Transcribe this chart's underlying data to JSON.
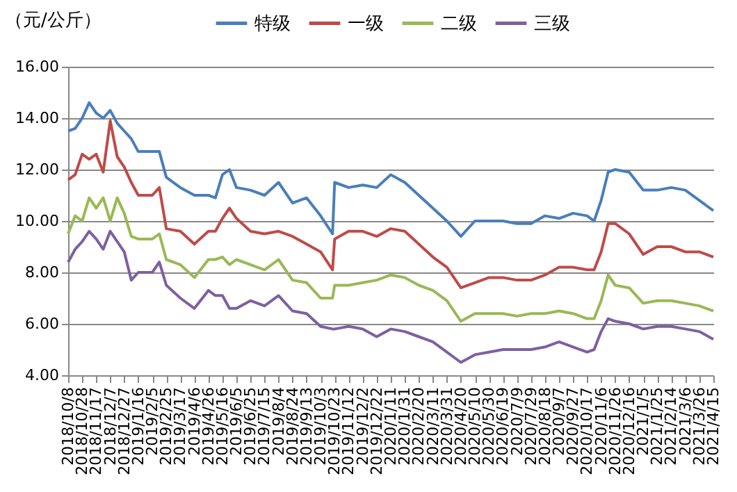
{
  "chart_data": {
    "type": "line",
    "ylabel": "（元/公斤）",
    "x": [
      "2018-10-08",
      "2018-10-18",
      "2018-10-28",
      "2018-11-07",
      "2018-11-17",
      "2018-11-27",
      "2018-12-07",
      "2018-12-17",
      "2018-12-27",
      "2019-01-06",
      "2019-01-16",
      "2019-02-05",
      "2019-02-15",
      "2019-02-25",
      "2019-03-17",
      "2019-04-06",
      "2019-04-26",
      "2019-05-06",
      "2019-05-16",
      "2019-05-26",
      "2019-06-05",
      "2019-06-25",
      "2019-07-15",
      "2019-08-04",
      "2019-08-24",
      "2019-09-13",
      "2019-10-03",
      "2019-10-20",
      "2019-10-23",
      "2019-11-12",
      "2019-12-02",
      "2019-12-22",
      "2020-01-11",
      "2020-01-31",
      "2020-02-20",
      "2020-03-11",
      "2020-03-31",
      "2020-04-20",
      "2020-05-10",
      "2020-05-30",
      "2020-06-19",
      "2020-07-09",
      "2020-07-29",
      "2020-08-18",
      "2020-09-07",
      "2020-09-27",
      "2020-10-17",
      "2020-10-27",
      "2020-11-06",
      "2020-11-16",
      "2020-11-26",
      "2020-12-16",
      "2021-01-05",
      "2021-01-25",
      "2021-02-14",
      "2021-03-06",
      "2021-03-26",
      "2021-04-15"
    ],
    "series": [
      {
        "name": "特级",
        "color": "#4a7ebb",
        "values": [
          13.5,
          13.6,
          14.0,
          14.6,
          14.2,
          14.0,
          14.3,
          13.8,
          13.5,
          13.2,
          12.7,
          12.7,
          12.7,
          11.7,
          11.3,
          11.0,
          11.0,
          10.9,
          11.8,
          12.0,
          11.3,
          11.2,
          11.0,
          11.5,
          10.7,
          10.9,
          10.2,
          9.5,
          11.5,
          11.3,
          11.4,
          11.3,
          11.8,
          11.5,
          11.0,
          10.5,
          10.0,
          9.4,
          10.0,
          10.0,
          10.0,
          9.9,
          9.9,
          10.2,
          10.1,
          10.3,
          10.2,
          10.0,
          10.8,
          11.9,
          12.0,
          11.9,
          11.2,
          11.2,
          11.3,
          11.2,
          10.8,
          10.4
        ]
      },
      {
        "name": "一级",
        "color": "#be4b48",
        "values": [
          11.6,
          11.8,
          12.6,
          12.4,
          12.6,
          11.9,
          13.9,
          12.5,
          12.1,
          11.5,
          11.0,
          11.0,
          11.3,
          9.7,
          9.6,
          9.1,
          9.6,
          9.6,
          10.1,
          10.5,
          10.1,
          9.6,
          9.5,
          9.6,
          9.4,
          9.1,
          8.8,
          8.1,
          9.3,
          9.6,
          9.6,
          9.4,
          9.7,
          9.6,
          9.1,
          8.6,
          8.2,
          7.4,
          7.6,
          7.8,
          7.8,
          7.7,
          7.7,
          7.9,
          8.2,
          8.2,
          8.1,
          8.1,
          8.8,
          9.9,
          9.9,
          9.5,
          8.7,
          9.0,
          9.0,
          8.8,
          8.8,
          8.6
        ]
      },
      {
        "name": "二级",
        "color": "#98b954",
        "values": [
          9.5,
          10.2,
          10.0,
          10.9,
          10.5,
          10.9,
          10.0,
          10.9,
          10.3,
          9.4,
          9.3,
          9.3,
          9.5,
          8.5,
          8.3,
          7.8,
          8.5,
          8.5,
          8.6,
          8.3,
          8.5,
          8.3,
          8.1,
          8.5,
          7.7,
          7.6,
          7.0,
          7.0,
          7.5,
          7.5,
          7.6,
          7.7,
          7.9,
          7.8,
          7.5,
          7.3,
          6.9,
          6.1,
          6.4,
          6.4,
          6.4,
          6.3,
          6.4,
          6.4,
          6.5,
          6.4,
          6.2,
          6.2,
          6.9,
          7.9,
          7.5,
          7.4,
          6.8,
          6.9,
          6.9,
          6.8,
          6.7,
          6.5
        ]
      },
      {
        "name": "三级",
        "color": "#7d60a0",
        "values": [
          8.4,
          8.9,
          9.2,
          9.6,
          9.3,
          8.9,
          9.6,
          9.2,
          8.8,
          7.7,
          8.0,
          8.0,
          8.4,
          7.5,
          7.0,
          6.6,
          7.3,
          7.1,
          7.1,
          6.6,
          6.6,
          6.9,
          6.7,
          7.1,
          6.5,
          6.4,
          5.9,
          5.8,
          5.8,
          5.9,
          5.8,
          5.5,
          5.8,
          5.7,
          5.5,
          5.3,
          4.9,
          4.5,
          4.8,
          4.9,
          5.0,
          5.0,
          5.0,
          5.1,
          5.3,
          5.1,
          4.9,
          5.0,
          5.7,
          6.2,
          6.1,
          6.0,
          5.8,
          5.9,
          5.9,
          5.8,
          5.7,
          5.4
        ]
      }
    ],
    "xlim": [
      "2018-10-08",
      "2021-04-15"
    ],
    "xticks": [
      {
        "value": "2018-10-08",
        "label": "2018/10/8"
      },
      {
        "value": "2018-10-28",
        "label": "2018/10/28"
      },
      {
        "value": "2018-11-17",
        "label": "2018/11/17"
      },
      {
        "value": "2018-12-07",
        "label": "2018/12/7"
      },
      {
        "value": "2018-12-27",
        "label": "2018/12/27"
      },
      {
        "value": "2019-01-16",
        "label": "2019/1/16"
      },
      {
        "value": "2019-02-05",
        "label": "2019/2/5"
      },
      {
        "value": "2019-02-25",
        "label": "2019/2/25"
      },
      {
        "value": "2019-03-17",
        "label": "2019/3/17"
      },
      {
        "value": "2019-04-06",
        "label": "2019/4/6"
      },
      {
        "value": "2019-04-26",
        "label": "2019/4/26"
      },
      {
        "value": "2019-05-16",
        "label": "2019/5/16"
      },
      {
        "value": "2019-06-05",
        "label": "2019/6/5"
      },
      {
        "value": "2019-06-25",
        "label": "2019/6/25"
      },
      {
        "value": "2019-07-15",
        "label": "2019/7/15"
      },
      {
        "value": "2019-08-04",
        "label": "2019/8/4"
      },
      {
        "value": "2019-08-24",
        "label": "2019/8/24"
      },
      {
        "value": "2019-09-13",
        "label": "2019/9/13"
      },
      {
        "value": "2019-10-03",
        "label": "2019/10/3"
      },
      {
        "value": "2019-10-23",
        "label": "2019/10/23"
      },
      {
        "value": "2019-11-12",
        "label": "2019/11/12"
      },
      {
        "value": "2019-12-02",
        "label": "2019/12/2"
      },
      {
        "value": "2019-12-22",
        "label": "2019/12/22"
      },
      {
        "value": "2020-01-11",
        "label": "2020/1/11"
      },
      {
        "value": "2020-01-31",
        "label": "2020/1/31"
      },
      {
        "value": "2020-02-20",
        "label": "2020/2/20"
      },
      {
        "value": "2020-03-11",
        "label": "2020/3/11"
      },
      {
        "value": "2020-03-31",
        "label": "2020/3/31"
      },
      {
        "value": "2020-04-20",
        "label": "2020/4/20"
      },
      {
        "value": "2020-05-10",
        "label": "2020/5/10"
      },
      {
        "value": "2020-05-30",
        "label": "2020/5/30"
      },
      {
        "value": "2020-06-19",
        "label": "2020/6/19"
      },
      {
        "value": "2020-07-09",
        "label": "2020/7/9"
      },
      {
        "value": "2020-07-29",
        "label": "2020/7/29"
      },
      {
        "value": "2020-08-18",
        "label": "2020/8/18"
      },
      {
        "value": "2020-09-07",
        "label": "2020/9/7"
      },
      {
        "value": "2020-09-27",
        "label": "2020/9/27"
      },
      {
        "value": "2020-10-17",
        "label": "2020/10/17"
      },
      {
        "value": "2020-11-06",
        "label": "2020/11/6"
      },
      {
        "value": "2020-11-26",
        "label": "2020/11/26"
      },
      {
        "value": "2020-12-16",
        "label": "2020/12/16"
      },
      {
        "value": "2021-01-05",
        "label": "2021/1/5"
      },
      {
        "value": "2021-01-25",
        "label": "2021/1/25"
      },
      {
        "value": "2021-02-14",
        "label": "2021/2/14"
      },
      {
        "value": "2021-03-06",
        "label": "2021/3/6"
      },
      {
        "value": "2021-03-26",
        "label": "2021/3/26"
      },
      {
        "value": "2021-04-15",
        "label": "2021/4/15"
      }
    ],
    "ylim": [
      4,
      16
    ],
    "yticks": [
      {
        "value": 4,
        "label": "4.00"
      },
      {
        "value": 6,
        "label": "6.00"
      },
      {
        "value": 8,
        "label": "8.00"
      },
      {
        "value": 10,
        "label": "10.00"
      },
      {
        "value": 12,
        "label": "12.00"
      },
      {
        "value": 14,
        "label": "14.00"
      },
      {
        "value": 16,
        "label": "16.00"
      }
    ],
    "grid": "y",
    "legend": "top"
  }
}
